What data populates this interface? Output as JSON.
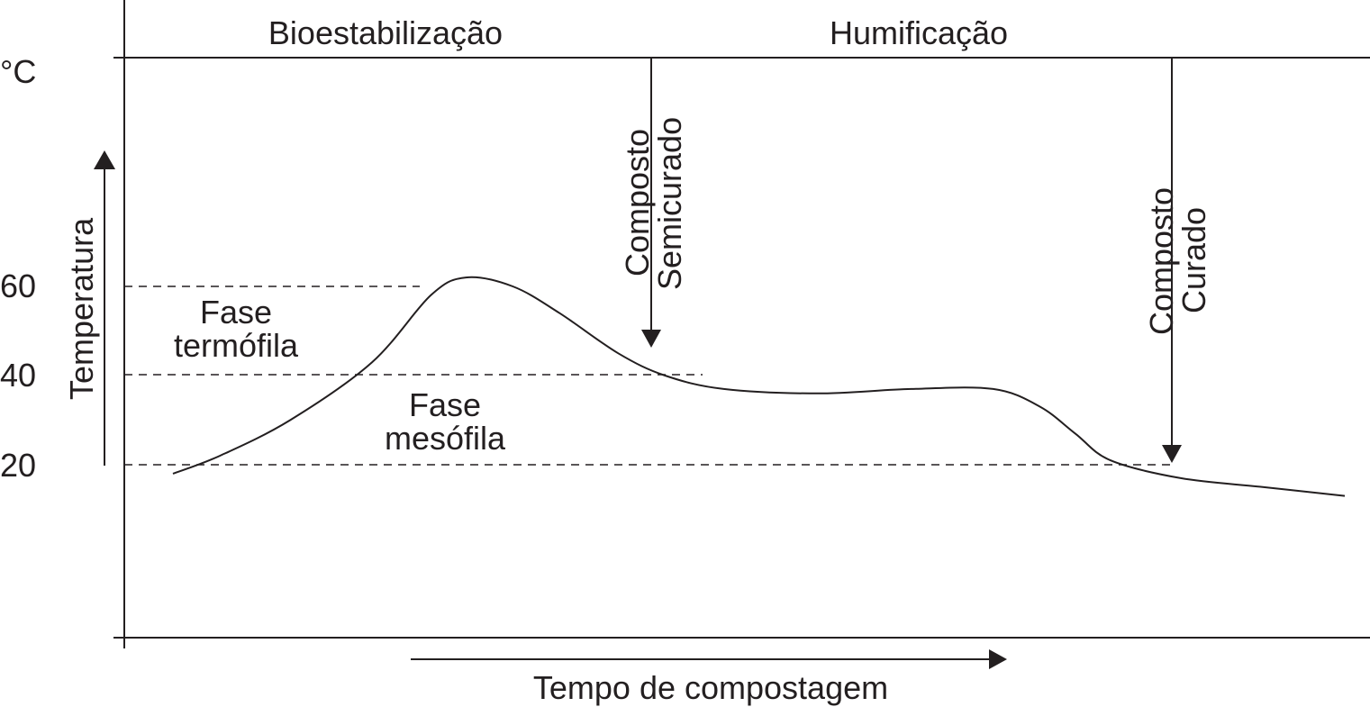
{
  "chart_data": {
    "type": "line",
    "unit": "°C",
    "ylabel": "Temperatura",
    "xlabel": "Tempo de compostagem",
    "yticks": [
      "60",
      "40",
      "20"
    ],
    "ytick_values": [
      60,
      40,
      20
    ],
    "stages": [
      "Bioestabilização",
      "Humificação"
    ],
    "phases": [
      {
        "label_line1": "Fase",
        "label_line2": "termófila"
      },
      {
        "label_line1": "Fase",
        "label_line2": "mesófila"
      }
    ],
    "markers": [
      {
        "label_line1": "Composto",
        "label_line2": "Semicurado",
        "y": 47
      },
      {
        "label_line1": "Composto",
        "label_line2": "Curado",
        "y": 21
      }
    ],
    "series": [
      {
        "values": [
          [
            0,
            18
          ],
          [
            4,
            22
          ],
          [
            10,
            30
          ],
          [
            17,
            43
          ],
          [
            22,
            58
          ],
          [
            25,
            62
          ],
          [
            29,
            60
          ],
          [
            33,
            54
          ],
          [
            38,
            45
          ],
          [
            42,
            40
          ],
          [
            47,
            37
          ],
          [
            55,
            36
          ],
          [
            63,
            37
          ],
          [
            70,
            37
          ],
          [
            74,
            33
          ],
          [
            77,
            27
          ],
          [
            80,
            21
          ],
          [
            86,
            17
          ],
          [
            93,
            15
          ],
          [
            100,
            13
          ]
        ]
      }
    ],
    "grid": false
  }
}
